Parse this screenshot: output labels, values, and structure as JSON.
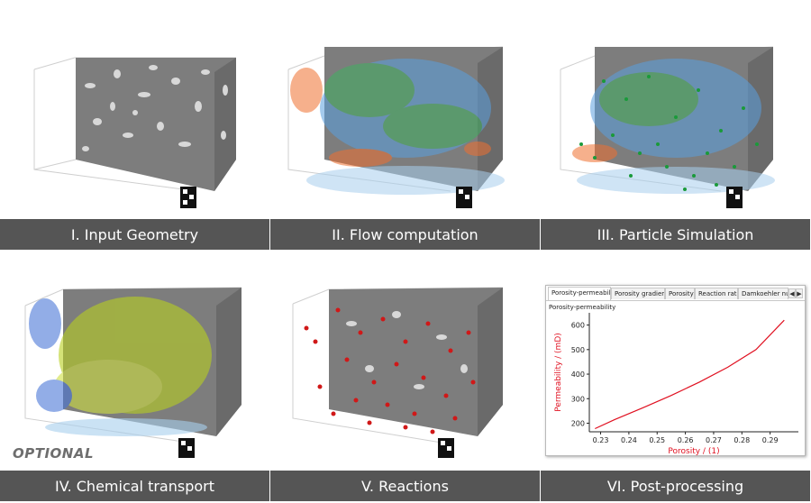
{
  "panels": [
    {
      "label": "I. Input Geometry"
    },
    {
      "label": "II. Flow computation"
    },
    {
      "label": "III. Particle Simulation"
    },
    {
      "label": "IV. Chemical transport"
    },
    {
      "label": "V. Reactions"
    },
    {
      "label": "VI. Post-processing"
    }
  ],
  "optional_label": "OPTIONAL",
  "plot_window": {
    "tabs": [
      "Porosity-permeability",
      "Porosity gradient",
      "Porosity",
      "Reaction rate",
      "Damkoehler numb"
    ],
    "tab_arrows": [
      "◀",
      "▶"
    ],
    "subtitle": "Porosity-permeability"
  },
  "colors": {
    "label_bg": "#555555",
    "solid": "#7a7a7a",
    "flow_blue": "#5aa0e0",
    "flow_green": "#40b060",
    "flow_orange": "#f07030",
    "particle": "#1a9a3a",
    "chem_green": "#b8d020",
    "reaction_red": "#d01818",
    "plot_red": "#e01020"
  },
  "chart_data": {
    "type": "line",
    "title": "Porosity-permeability",
    "xlabel": "Porosity / (1)",
    "ylabel": "Permeability / (mD)",
    "xlim": [
      0.226,
      0.3
    ],
    "ylim": [
      165,
      650
    ],
    "xticks": [
      0.23,
      0.24,
      0.25,
      0.26,
      0.27,
      0.28,
      0.29
    ],
    "xtick_labels": [
      "0.23",
      "0.24",
      "0.25",
      "0.26",
      "0.27",
      "0.28",
      "0.29"
    ],
    "yticks": [
      200,
      300,
      400,
      500,
      600
    ],
    "ytick_labels": [
      "200",
      "300",
      "400",
      "500",
      "600"
    ],
    "grid": false,
    "series": [
      {
        "name": "Porosity-permeability",
        "x": [
          0.228,
          0.235,
          0.245,
          0.255,
          0.265,
          0.275,
          0.285,
          0.295
        ],
        "y": [
          178,
          215,
          263,
          313,
          368,
          428,
          500,
          620
        ]
      }
    ]
  }
}
